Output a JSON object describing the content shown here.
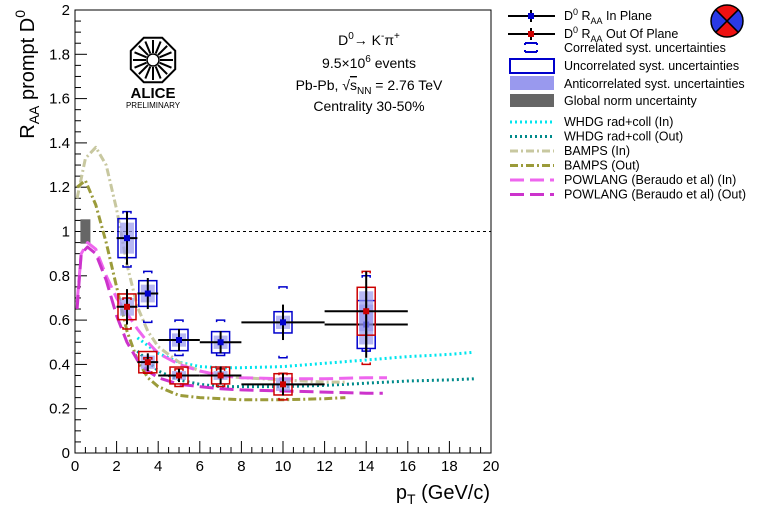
{
  "chart_data": {
    "type": "scatter",
    "title": "",
    "xlabel": "p_T (GeV/c)",
    "ylabel": "R_AA prompt D^0",
    "xlim": [
      0,
      20
    ],
    "ylim": [
      0,
      2
    ],
    "x_ticks": [
      "0",
      "2",
      "4",
      "6",
      "8",
      "10",
      "12",
      "14",
      "16",
      "18",
      "20"
    ],
    "y_ticks": [
      "0",
      "0.2",
      "0.4",
      "0.6",
      "0.8",
      "1",
      "1.2",
      "1.4",
      "1.6",
      "1.8",
      "2"
    ],
    "reference_line": 1,
    "global_norm_box": {
      "x": 0.5,
      "y_low": 0.945,
      "y_high": 1.055
    },
    "series": [
      {
        "name": "D0 RAA In Plane",
        "color": "#0000cc",
        "points": [
          {
            "x": 2.5,
            "y": 0.97,
            "xerr": 0.5,
            "stat": 0.12,
            "syst": 0.07,
            "corr_low": 0.84,
            "corr_high": 1.09
          },
          {
            "x": 3.5,
            "y": 0.72,
            "xerr": 0.5,
            "stat": 0.07,
            "syst": 0.04,
            "corr_low": 0.59,
            "corr_high": 0.82
          },
          {
            "x": 5.0,
            "y": 0.51,
            "xerr": 1.0,
            "stat": 0.05,
            "syst": 0.03,
            "corr_low": 0.44,
            "corr_high": 0.6
          },
          {
            "x": 7.0,
            "y": 0.5,
            "xerr": 1.0,
            "stat": 0.05,
            "syst": 0.03,
            "corr_low": 0.44,
            "corr_high": 0.6
          },
          {
            "x": 10.0,
            "y": 0.59,
            "xerr": 2.0,
            "stat": 0.08,
            "syst": 0.03,
            "corr_low": 0.43,
            "corr_high": 0.75
          },
          {
            "x": 14.0,
            "y": 0.58,
            "xerr": 2.0,
            "stat": 0.15,
            "syst": 0.09,
            "corr_low": 0.46,
            "corr_high": 0.8
          }
        ]
      },
      {
        "name": "D0 RAA Out Of Plane",
        "color": "#cc0000",
        "points": [
          {
            "x": 2.5,
            "y": 0.66,
            "xerr": 0.5,
            "stat": 0.08,
            "syst": 0.04,
            "corr_low": 0.56,
            "corr_high": 0.7
          },
          {
            "x": 3.5,
            "y": 0.41,
            "xerr": 0.5,
            "stat": 0.04,
            "syst": 0.03,
            "corr_low": 0.36,
            "corr_high": 0.43
          },
          {
            "x": 5.0,
            "y": 0.35,
            "xerr": 1.0,
            "stat": 0.03,
            "syst": 0.02,
            "corr_low": 0.3,
            "corr_high": 0.38
          },
          {
            "x": 7.0,
            "y": 0.35,
            "xerr": 1.0,
            "stat": 0.04,
            "syst": 0.02,
            "corr_low": 0.3,
            "corr_high": 0.38
          },
          {
            "x": 10.0,
            "y": 0.31,
            "xerr": 2.0,
            "stat": 0.05,
            "syst": 0.03,
            "corr_low": 0.24,
            "corr_high": 0.36
          },
          {
            "x": 14.0,
            "y": 0.64,
            "xerr": 2.0,
            "stat": 0.18,
            "syst": 0.09,
            "corr_low": 0.4,
            "corr_high": 0.82
          }
        ]
      }
    ],
    "models": [
      {
        "name": "WHDG rad+coll (In)",
        "color": "#00e5ee",
        "dash": "2,3",
        "width": 3,
        "x": [
          3,
          4,
          5,
          6,
          7,
          8,
          10,
          12,
          14,
          16,
          18,
          19.2
        ],
        "y": [
          0.52,
          0.45,
          0.41,
          0.39,
          0.385,
          0.385,
          0.39,
          0.405,
          0.42,
          0.435,
          0.445,
          0.455
        ]
      },
      {
        "name": "WHDG rad+coll (Out)",
        "color": "#008b8b",
        "dash": "2,3",
        "width": 3,
        "x": [
          3,
          4,
          5,
          6,
          7,
          8,
          10,
          12,
          14,
          16,
          18,
          19.2
        ],
        "y": [
          0.46,
          0.37,
          0.33,
          0.31,
          0.3,
          0.3,
          0.3,
          0.305,
          0.315,
          0.325,
          0.33,
          0.335
        ]
      },
      {
        "name": "BAMPS (In)",
        "color": "#c8c8a0",
        "dash": "8,3,2,3",
        "width": 3,
        "x": [
          0.1,
          0.5,
          1.0,
          1.5,
          2.0,
          2.5,
          3.0,
          3.5,
          4.0,
          5.0,
          6.0,
          7.0,
          8.0,
          10,
          12,
          13
        ],
        "y": [
          1.15,
          1.33,
          1.38,
          1.3,
          1.1,
          0.85,
          0.66,
          0.55,
          0.48,
          0.41,
          0.37,
          0.35,
          0.34,
          0.33,
          0.32,
          0.32
        ]
      },
      {
        "name": "BAMPS (Out)",
        "color": "#9b9b3a",
        "dash": "8,3,2,3",
        "width": 3,
        "x": [
          0.1,
          0.5,
          1.0,
          1.5,
          2.0,
          2.5,
          3.0,
          3.5,
          4.0,
          5.0,
          6.0,
          7.0,
          8.0,
          10,
          12,
          13
        ],
        "y": [
          1.2,
          1.23,
          1.12,
          0.95,
          0.75,
          0.55,
          0.42,
          0.34,
          0.3,
          0.26,
          0.25,
          0.245,
          0.24,
          0.24,
          0.245,
          0.25
        ]
      },
      {
        "name": "POWLANG (Beraudo et al) (In)",
        "color": "#ee66ee",
        "dash": "14,6",
        "width": 3,
        "x": [
          0.1,
          0.3,
          0.6,
          1.0,
          1.5,
          2.0,
          2.5,
          3.0,
          3.5,
          4.0,
          5.0,
          6.0,
          7.0,
          8.0,
          10,
          12,
          14,
          15
        ],
        "y": [
          0.68,
          0.9,
          0.95,
          0.92,
          0.8,
          0.7,
          0.63,
          0.56,
          0.5,
          0.45,
          0.4,
          0.37,
          0.35,
          0.34,
          0.335,
          0.335,
          0.34,
          0.34
        ]
      },
      {
        "name": "POWLANG (Beraudo et al) (Out)",
        "color": "#cc33cc",
        "dash": "14,6",
        "width": 3,
        "x": [
          0.1,
          0.3,
          0.6,
          1.0,
          1.5,
          2.0,
          2.5,
          3.0,
          3.5,
          4.0,
          5.0,
          6.0,
          7.0,
          8.0,
          10,
          12,
          14,
          14.8
        ],
        "y": [
          0.65,
          0.9,
          0.93,
          0.9,
          0.78,
          0.62,
          0.5,
          0.42,
          0.37,
          0.34,
          0.31,
          0.3,
          0.29,
          0.285,
          0.28,
          0.275,
          0.27,
          0.27
        ]
      }
    ]
  },
  "annotations": {
    "logo_text": "ALICE",
    "logo_sub": "PRELIMINARY",
    "reaction": "D0→ K-π+",
    "events": "9.5×10^6 events",
    "collision": "Pb-Pb, √sNN = 2.76 TeV",
    "centrality": "Centrality 30-50%"
  },
  "legend": {
    "in_plane": "D0 RAA In Plane",
    "out_plane": "D0 RAA Out Of Plane",
    "correlated": "Correlated syst. uncertainties",
    "uncorrelated": "Uncorrelated syst. uncertainties",
    "anticorrelated": "Anticorrelated syst. uncertainties",
    "global_norm": "Global norm uncertainty",
    "whdg_in": "WHDG rad+coll (In)",
    "whdg_out": "WHDG rad+coll (Out)",
    "bamps_in": "BAMPS (In)",
    "bamps_out": "BAMPS (Out)",
    "powlang_in": "POWLANG (Beraudo et al) (In)",
    "powlang_out": "POWLANG (Beraudo et al) (Out)"
  },
  "colors": {
    "in_plane": "#0000cc",
    "out_plane": "#cc0000",
    "anticorrelated_fill": "#9999ee",
    "global_norm_fill": "#666666"
  }
}
